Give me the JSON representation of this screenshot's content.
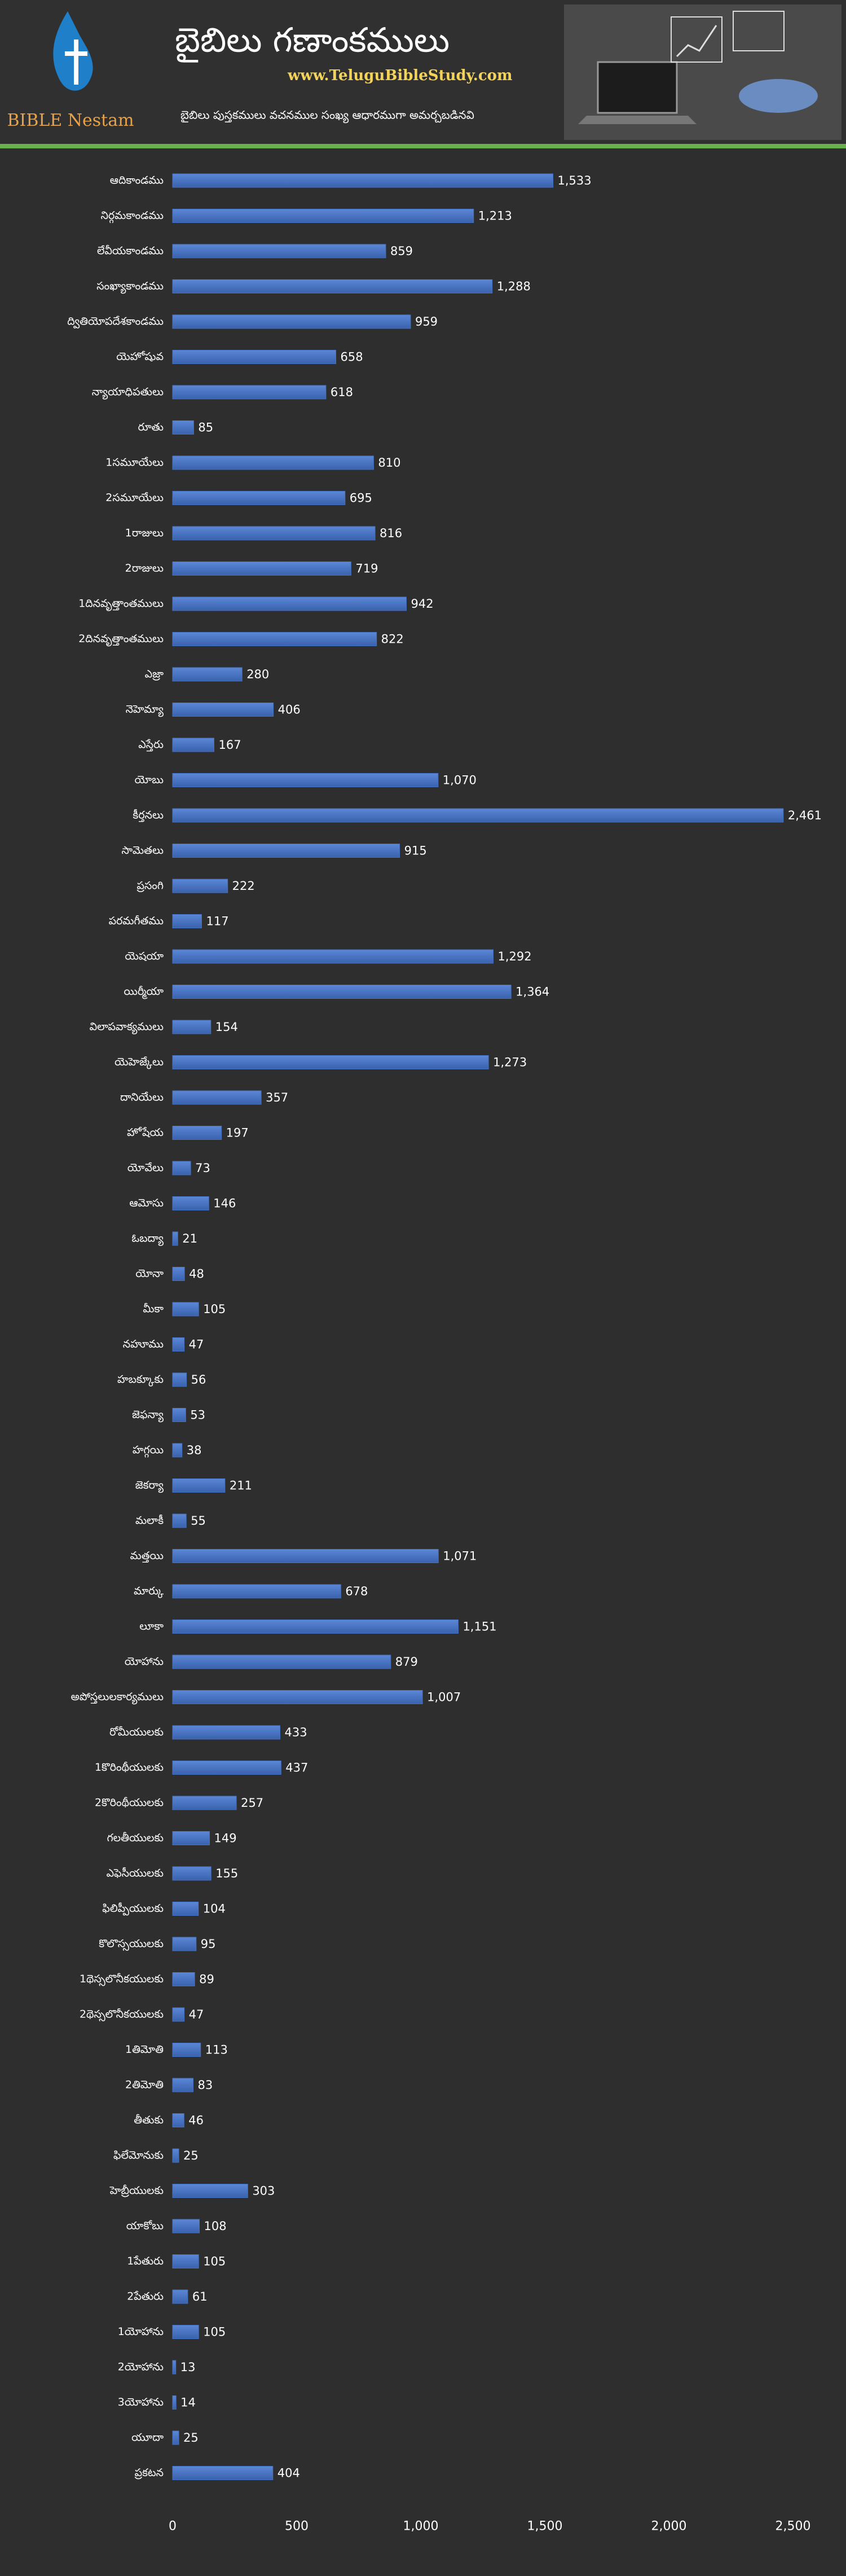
{
  "header": {
    "logo_text": "BIBLE Nestam",
    "title": "బైబిలు గణాంకములు",
    "url": "www.TeluguBibleStudy.com",
    "subtitle": "బైబిలు పుస్తకములు వచనముల సంఖ్య ఆధారముగా అమర్చబడినవి"
  },
  "chart_data": {
    "type": "bar",
    "orientation": "horizontal",
    "color": "#4472c4",
    "grid": false,
    "categories": [
      "ఆదికాండము",
      "నిర్గమకాండము",
      "లేవీయకాండము",
      "సంఖ్యాకాండము",
      "ద్వితియోపదేశకాండము",
      "యెహోషువ",
      "న్యాయాధిపతులు",
      "రూతు",
      "1సమూయేలు",
      "2సమూయేలు",
      "1రాజులు",
      "2రాజులు",
      "1దినవృత్తాంతములు",
      "2దినవృత్తాంతములు",
      "ఎజ్రా",
      "నెహెమ్యా",
      "ఎస్తేరు",
      "యోబు",
      "కీర్తనలు",
      "సామెతలు",
      "ప్రసంగి",
      "పరమగీతము",
      "యెషయా",
      "యిర్మీయా",
      "విలాపవాక్యములు",
      "యెహెజ్కేలు",
      "దానియేలు",
      "హోషేయ",
      "యోవేలు",
      "ఆమోసు",
      "ఓబద్యా",
      "యోనా",
      "మీకా",
      "నహూము",
      "హబక్కూకు",
      "జెఫన్యా",
      "హగ్గయి",
      "జెకర్యా",
      "మలాకీ",
      "మత్తయి",
      "మార్కు",
      "లూకా",
      "యోహాను",
      "అపోస్తలులకార్యములు",
      "రోమీయులకు",
      "1కొరింథీయులకు",
      "2కొరింథీయులకు",
      "గలతీయులకు",
      "ఎఫెసీయులకు",
      "ఫిలిప్పీయులకు",
      "కొలొస్సయులకు",
      "1థెస్సలొనీకయులకు",
      "2థెస్సలొనీకయులకు",
      "1తిమోతి",
      "2తిమోతి",
      "తీతుకు",
      "ఫిలేమోనుకు",
      "హెబ్రీయులకు",
      "యాకోబు",
      "1పేతురు",
      "2పేతురు",
      "1యోహాను",
      "2యోహాను",
      "3యోహాను",
      "యూదా",
      "ప్రకటన"
    ],
    "values": [
      1533,
      1213,
      859,
      1288,
      959,
      658,
      618,
      85,
      810,
      695,
      816,
      719,
      942,
      822,
      280,
      406,
      167,
      1070,
      2461,
      915,
      222,
      117,
      1292,
      1364,
      154,
      1273,
      357,
      197,
      73,
      146,
      21,
      48,
      105,
      47,
      56,
      53,
      38,
      211,
      55,
      1071,
      678,
      1151,
      879,
      1007,
      433,
      437,
      257,
      149,
      155,
      104,
      95,
      89,
      47,
      113,
      83,
      46,
      25,
      303,
      108,
      105,
      61,
      105,
      13,
      14,
      25,
      404
    ],
    "value_labels": [
      "1,533",
      "1,213",
      "859",
      "1,288",
      "959",
      "658",
      "618",
      "85",
      "810",
      "695",
      "816",
      "719",
      "942",
      "822",
      "280",
      "406",
      "167",
      "1,070",
      "2,461",
      "915",
      "222",
      "117",
      "1,292",
      "1,364",
      "154",
      "1,273",
      "357",
      "197",
      "73",
      "146",
      "21",
      "48",
      "105",
      "47",
      "56",
      "53",
      "38",
      "211",
      "55",
      "1,071",
      "678",
      "1,151",
      "879",
      "1,007",
      "433",
      "437",
      "257",
      "149",
      "155",
      "104",
      "95",
      "89",
      "47",
      "113",
      "83",
      "46",
      "25",
      "303",
      "108",
      "105",
      "61",
      "105",
      "13",
      "14",
      "25",
      "404"
    ],
    "xlim": [
      0,
      2500
    ],
    "xticks": [
      0,
      500,
      {
        "value": 1000,
        "label": "1,000"
      },
      {
        "value": 1500,
        "label": "1,500"
      },
      {
        "value": 2000,
        "label": "2,000"
      },
      {
        "value": 2500,
        "label": "2,500"
      }
    ]
  }
}
